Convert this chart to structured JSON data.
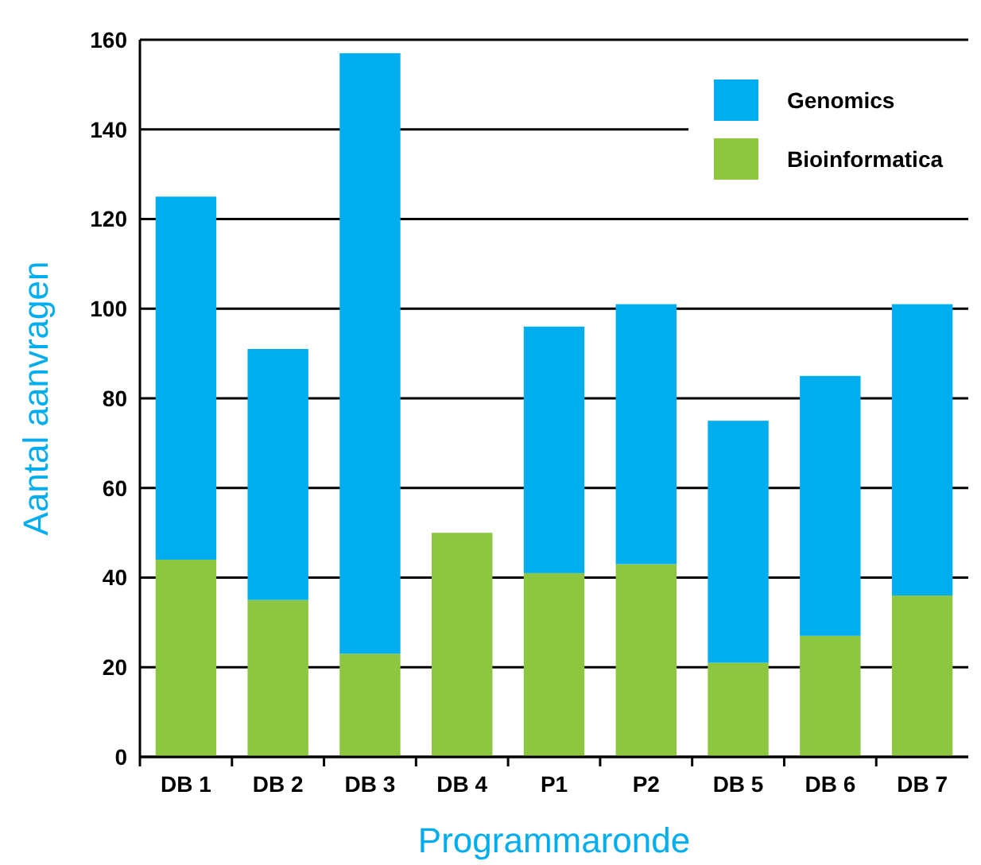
{
  "chart_data": {
    "type": "bar",
    "stacked": true,
    "xlabel": "Programmaronde",
    "ylabel": "Aantal aanvragen",
    "categories": [
      "DB 1",
      "DB 2",
      "DB 3",
      "DB 4",
      "P1",
      "P2",
      "DB 5",
      "DB 6",
      "DB 7"
    ],
    "series": [
      {
        "name": "Bioinformatica",
        "color": "#8dc63f",
        "values": [
          44,
          35,
          23,
          50,
          41,
          43,
          21,
          27,
          36
        ]
      },
      {
        "name": "Genomics",
        "color": "#00aeef",
        "values": [
          81,
          56,
          134,
          0,
          55,
          58,
          54,
          58,
          65
        ]
      }
    ],
    "ylim": [
      0,
      160
    ],
    "yticks": [
      0,
      20,
      40,
      60,
      80,
      100,
      120,
      140,
      160
    ],
    "grid": "y",
    "legend": "top right"
  }
}
